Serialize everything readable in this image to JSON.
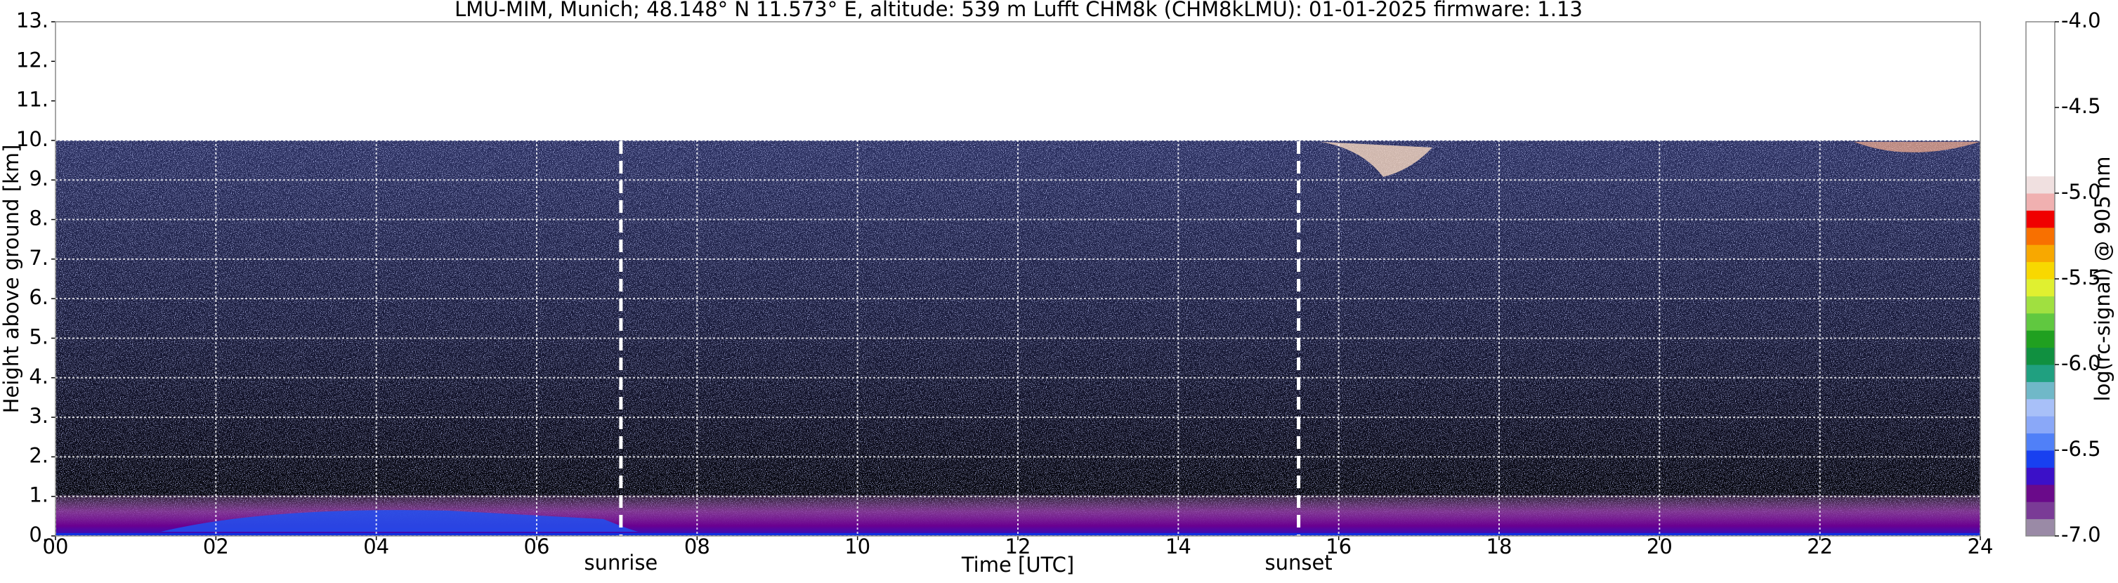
{
  "chart_data": {
    "type": "heatmap",
    "title": "LMU-MIM, Munich; 48.148° N 11.573° E, altitude: 539 m    Lufft CHM8k (CHM8kLMU): 01-01-2025    firmware: 1.13",
    "x_label": "Time [UTC]",
    "y_label": "Height above ground [km]",
    "xlim": [
      0,
      24
    ],
    "xticks": [
      {
        "value": 0,
        "label": "00"
      },
      {
        "value": 2,
        "label": "02"
      },
      {
        "value": 4,
        "label": "04"
      },
      {
        "value": 6,
        "label": "06"
      },
      {
        "value": 8,
        "label": "08"
      },
      10,
      12,
      14,
      16,
      18,
      20,
      22,
      24
    ],
    "ylim": [
      0,
      13
    ],
    "yticks": [
      {
        "value": 0,
        "label": "0."
      },
      {
        "value": 1,
        "label": "1."
      },
      {
        "value": 2,
        "label": "2."
      },
      {
        "value": 3,
        "label": "3."
      },
      {
        "value": 4,
        "label": "4."
      },
      {
        "value": 5,
        "label": "5."
      },
      {
        "value": 6,
        "label": "6."
      },
      {
        "value": 7,
        "label": "7."
      },
      {
        "value": 8,
        "label": "8."
      },
      {
        "value": 9,
        "label": "9."
      },
      {
        "value": 10,
        "label": "10."
      },
      {
        "value": 11,
        "label": "11."
      },
      {
        "value": 12,
        "label": "12."
      },
      {
        "value": 13,
        "label": "13."
      }
    ],
    "grid": true,
    "annotations": [
      {
        "text": "sunrise",
        "x": 7.05
      },
      {
        "text": "sunset",
        "x": 15.5
      }
    ],
    "colorbar": {
      "label": "log(rc-signal) @ 905 nm",
      "clim": [
        -7,
        -4
      ],
      "ticks": [
        {
          "value": -4,
          "label": "-4.0"
        },
        -4.5,
        {
          "value": -5,
          "label": "-5.0"
        },
        -5.5,
        {
          "value": -6,
          "label": "-6.0"
        },
        -6.5,
        {
          "value": -7,
          "label": "-7.0"
        }
      ],
      "colors": [
        "#9a8aa6",
        "#7a3b96",
        "#6a0a8a",
        "#3b10c8",
        "#1840f0",
        "#5080f8",
        "#8aa8f8",
        "#a8c0f8",
        "#70b8c8",
        "#20a080",
        "#109040",
        "#20a020",
        "#60c840",
        "#a0e040",
        "#e0f030",
        "#f8d800",
        "#f8a800",
        "#f87000",
        "#f00000",
        "#f0b0b0",
        "#f0e0e0",
        "#ffffff",
        "#ffffff",
        "#ffffff",
        "#ffffff",
        "#ffffff",
        "#ffffff",
        "#ffffff",
        "#ffffff",
        "#ffffff"
      ]
    }
  }
}
